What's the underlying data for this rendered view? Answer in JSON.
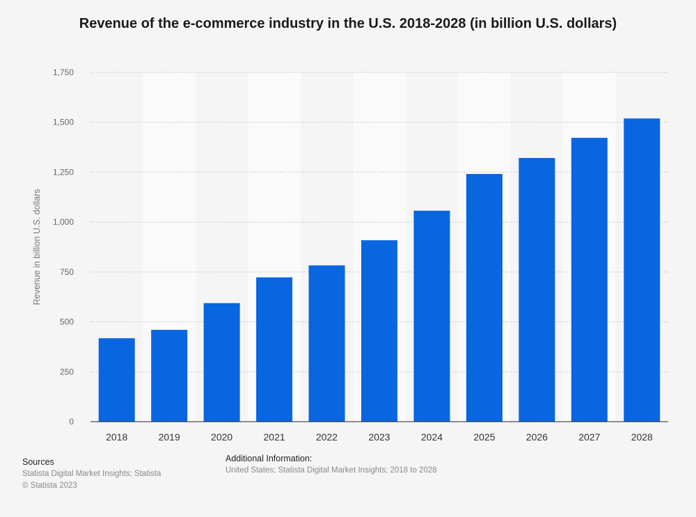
{
  "chart_data": {
    "type": "bar",
    "title": "Revenue of the e-commerce industry in the U.S. 2018-2028 (in billion U.S. dollars)",
    "xlabel": "",
    "ylabel": "Revenue in billion U.S. dollars",
    "categories": [
      "2018",
      "2019",
      "2020",
      "2021",
      "2022",
      "2023",
      "2024",
      "2025",
      "2026",
      "2027",
      "2028"
    ],
    "values": [
      418,
      460,
      594,
      723,
      783,
      909,
      1057,
      1241,
      1321,
      1422,
      1519
    ],
    "ylim": [
      0,
      1750
    ],
    "yticks": [
      0,
      250,
      500,
      750,
      1000,
      1250,
      1500,
      1750
    ],
    "ytick_labels": [
      "0",
      "250",
      "500",
      "750",
      "1,000",
      "1,250",
      "1,500",
      "1,750"
    ],
    "grid": true,
    "bar_color": "#0866e0",
    "alt_band_color": "#fafafa"
  },
  "footer": {
    "sources_heading": "Sources",
    "sources_line": "Statista Digital Market Insights; Statista",
    "copyright": "© Statista 2023",
    "additional_heading": "Additional Information:",
    "additional_line": "United States; Statista Digital Market Insights; 2018 to 2028"
  }
}
